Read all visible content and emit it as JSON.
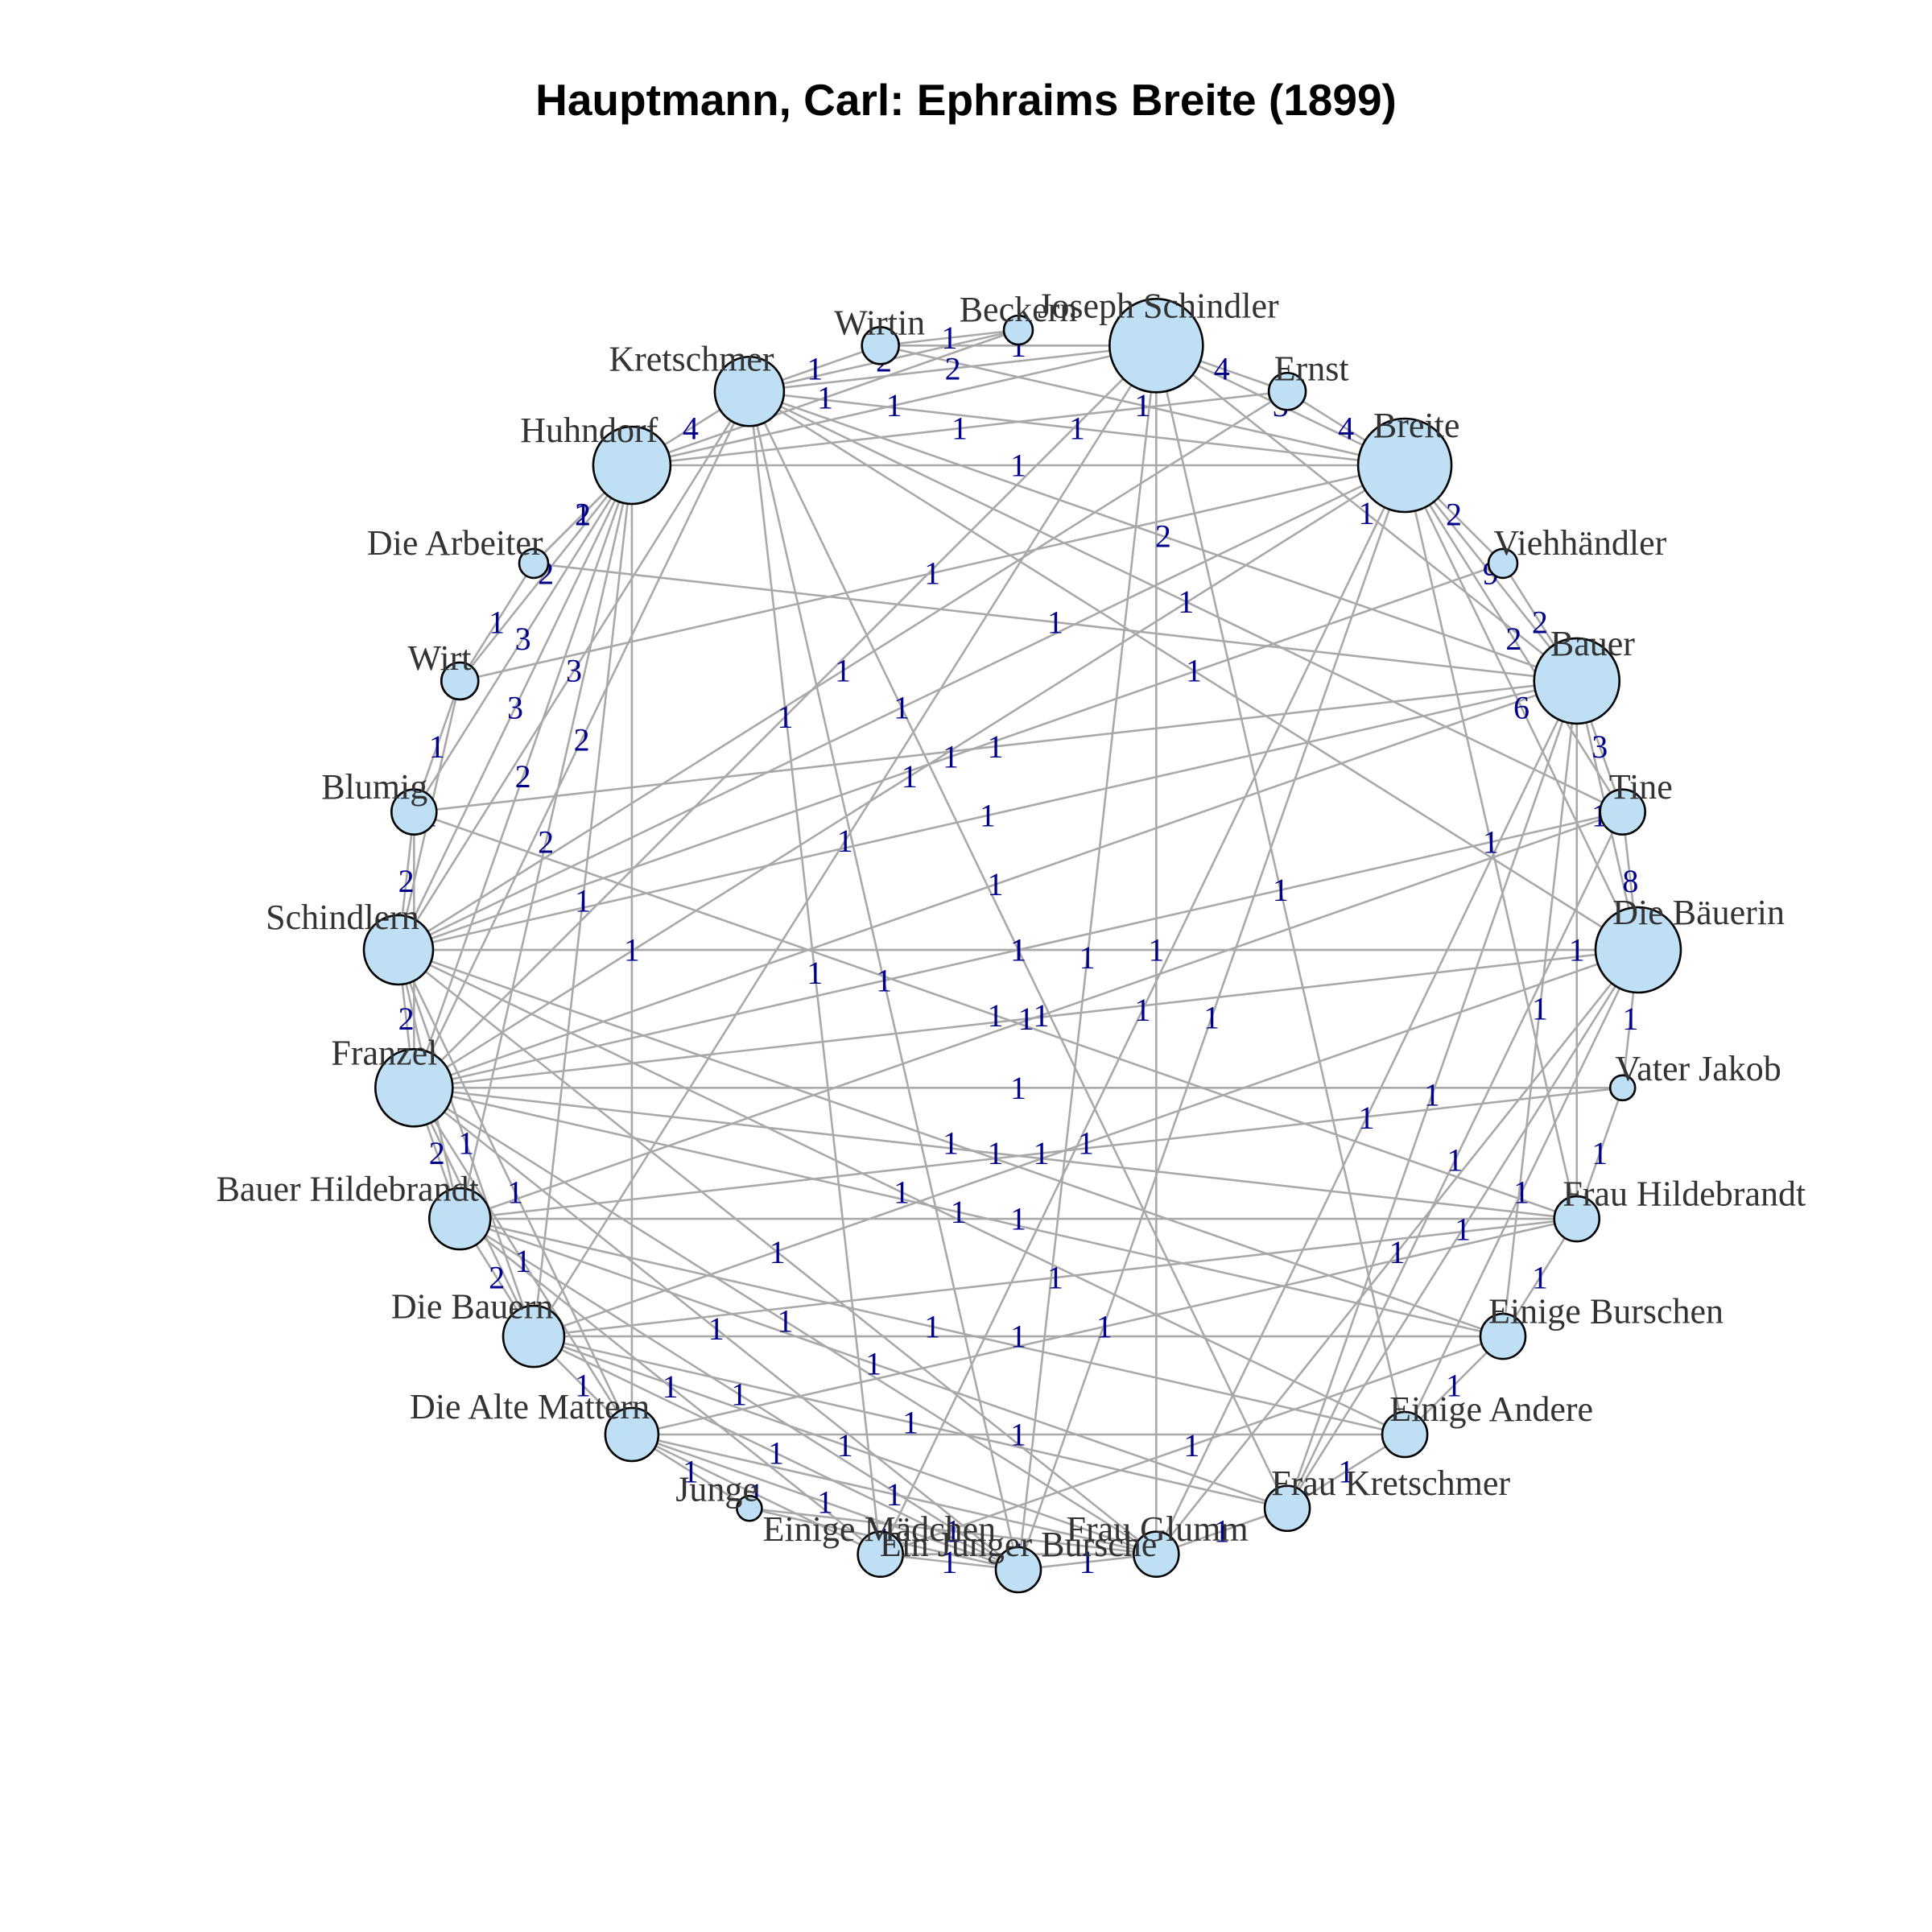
{
  "title": "Hauptmann, Carl: Ephraims Breite (1899)",
  "colors": {
    "node_fill": "#bfdff5",
    "node_stroke": "#000000",
    "edge": "#a9a9a9",
    "edge_label": "#00008b",
    "node_label": "#333333"
  },
  "chart_data": {
    "type": "network",
    "layout": "circle",
    "nodes": [
      {
        "name": "Joseph Schindler",
        "size": 10
      },
      {
        "name": "Ernst",
        "size": 3
      },
      {
        "name": "Breite",
        "size": 10
      },
      {
        "name": "Viehhändler",
        "size": 2
      },
      {
        "name": "Bauer",
        "size": 9
      },
      {
        "name": "Tine",
        "size": 4
      },
      {
        "name": "Die Bäuerin",
        "size": 9
      },
      {
        "name": "Vater Jakob",
        "size": 1.5
      },
      {
        "name": "Frau Hildebrandt",
        "size": 4
      },
      {
        "name": "Einige Burschen",
        "size": 4
      },
      {
        "name": "Einige Andere",
        "size": 4
      },
      {
        "name": "Frau Kretschmer",
        "size": 4
      },
      {
        "name": "Frau Glumm",
        "size": 4
      },
      {
        "name": "Ein Junger Bursche",
        "size": 4
      },
      {
        "name": "Einige Mädchen",
        "size": 4
      },
      {
        "name": "Junge",
        "size": 1.5
      },
      {
        "name": "Die Alte Mattern",
        "size": 5
      },
      {
        "name": "Die Bauern",
        "size": 6
      },
      {
        "name": "Bauer Hildebrandt",
        "size": 6
      },
      {
        "name": "Franzel",
        "size": 8
      },
      {
        "name": "Schindlern",
        "size": 7
      },
      {
        "name": "Blumig",
        "size": 4
      },
      {
        "name": "Wirt",
        "size": 3
      },
      {
        "name": "Die Arbeiter",
        "size": 2
      },
      {
        "name": "Huhndorf",
        "size": 8
      },
      {
        "name": "Kretschmer",
        "size": 7
      },
      {
        "name": "Wirtin",
        "size": 3
      },
      {
        "name": "Beckern",
        "size": 2
      }
    ],
    "edges": [
      {
        "source": "Joseph Schindler",
        "target": "Ernst",
        "weight": 4
      },
      {
        "source": "Ernst",
        "target": "Breite",
        "weight": 4
      },
      {
        "source": "Joseph Schindler",
        "target": "Breite",
        "weight": 3
      },
      {
        "source": "Breite",
        "target": "Viehhändler",
        "weight": 2
      },
      {
        "source": "Viehhändler",
        "target": "Bauer",
        "weight": 2
      },
      {
        "source": "Breite",
        "target": "Bauer",
        "weight": 9
      },
      {
        "source": "Bauer",
        "target": "Tine",
        "weight": 3
      },
      {
        "source": "Bauer",
        "target": "Die Bäuerin",
        "weight": 18
      },
      {
        "source": "Tine",
        "target": "Die Bäuerin",
        "weight": 8
      },
      {
        "source": "Breite",
        "target": "Tine",
        "weight": 2
      },
      {
        "source": "Breite",
        "target": "Die Bäuerin",
        "weight": 6
      },
      {
        "source": "Die Bäuerin",
        "target": "Vater Jakob",
        "weight": 1
      },
      {
        "source": "Vater Jakob",
        "target": "Frau Hildebrandt",
        "weight": 1
      },
      {
        "source": "Frau Hildebrandt",
        "target": "Einige Burschen",
        "weight": 1
      },
      {
        "source": "Einige Burschen",
        "target": "Einige Andere",
        "weight": 1
      },
      {
        "source": "Einige Andere",
        "target": "Frau Kretschmer",
        "weight": 1
      },
      {
        "source": "Frau Kretschmer",
        "target": "Frau Glumm",
        "weight": 1
      },
      {
        "source": "Frau Glumm",
        "target": "Ein Junger Bursche",
        "weight": 1
      },
      {
        "source": "Ein Junger Bursche",
        "target": "Einige Mädchen",
        "weight": 1
      },
      {
        "source": "Einige Mädchen",
        "target": "Die Alte Mattern",
        "weight": 1
      },
      {
        "source": "Junge",
        "target": "Die Alte Mattern",
        "weight": 1
      },
      {
        "source": "Die Alte Mattern",
        "target": "Die Bauern",
        "weight": 1
      },
      {
        "source": "Die Bauern",
        "target": "Bauer Hildebrandt",
        "weight": 2
      },
      {
        "source": "Bauer Hildebrandt",
        "target": "Franzel",
        "weight": 2
      },
      {
        "source": "Franzel",
        "target": "Schindlern",
        "weight": 2
      },
      {
        "source": "Schindlern",
        "target": "Blumig",
        "weight": 2
      },
      {
        "source": "Blumig",
        "target": "Wirt",
        "weight": 1
      },
      {
        "source": "Wirt",
        "target": "Die Arbeiter",
        "weight": 1
      },
      {
        "source": "Die Arbeiter",
        "target": "Huhndorf",
        "weight": 1
      },
      {
        "source": "Huhndorf",
        "target": "Kretschmer",
        "weight": 4
      },
      {
        "source": "Kretschmer",
        "target": "Wirtin",
        "weight": 1
      },
      {
        "source": "Wirtin",
        "target": "Beckern",
        "weight": 1
      },
      {
        "source": "Beckern",
        "target": "Kretschmer",
        "weight": 2
      },
      {
        "source": "Joseph Schindler",
        "target": "Kretschmer",
        "weight": 2
      },
      {
        "source": "Joseph Schindler",
        "target": "Huhndorf",
        "weight": 1
      },
      {
        "source": "Huhndorf",
        "target": "Breite",
        "weight": 1
      },
      {
        "source": "Breite",
        "target": "Kretschmer",
        "weight": 1
      },
      {
        "source": "Huhndorf",
        "target": "Die Arbeiter",
        "weight": 2
      },
      {
        "source": "Huhndorf",
        "target": "Wirt",
        "weight": 2
      },
      {
        "source": "Huhndorf",
        "target": "Blumig",
        "weight": 3
      },
      {
        "source": "Huhndorf",
        "target": "Schindlern",
        "weight": 3
      },
      {
        "source": "Huhndorf",
        "target": "Franzel",
        "weight": 2
      },
      {
        "source": "Huhndorf",
        "target": "Bauer Hildebrandt",
        "weight": 2
      },
      {
        "source": "Kretschmer",
        "target": "Schindlern",
        "weight": 3
      },
      {
        "source": "Kretschmer",
        "target": "Franzel",
        "weight": 2
      },
      {
        "source": "Kretschmer",
        "target": "Bauer",
        "weight": 2
      },
      {
        "source": "Kretschmer",
        "target": "Die Bäuerin",
        "weight": 1
      },
      {
        "source": "Kretschmer",
        "target": "Tine",
        "weight": 1
      },
      {
        "source": "Joseph Schindler",
        "target": "Die Bauern",
        "weight": 1
      },
      {
        "source": "Joseph Schindler",
        "target": "Bauer",
        "weight": 1
      },
      {
        "source": "Joseph Schindler",
        "target": "Franzel",
        "weight": 1
      },
      {
        "source": "Joseph Schindler",
        "target": "Frau Glumm",
        "weight": 1
      },
      {
        "source": "Breite",
        "target": "Schindlern",
        "weight": 1
      },
      {
        "source": "Breite",
        "target": "Franzel",
        "weight": 1
      },
      {
        "source": "Breite",
        "target": "Frau Hildebrandt",
        "weight": 1
      },
      {
        "source": "Bauer",
        "target": "Schindlern",
        "weight": 1
      },
      {
        "source": "Bauer",
        "target": "Franzel",
        "weight": 1
      },
      {
        "source": "Bauer",
        "target": "Frau Hildebrandt",
        "weight": 1
      },
      {
        "source": "Bauer",
        "target": "Einige Burschen",
        "weight": 1
      },
      {
        "source": "Die Bäuerin",
        "target": "Schindlern",
        "weight": 1
      },
      {
        "source": "Die Bäuerin",
        "target": "Franzel",
        "weight": 1
      },
      {
        "source": "Die Bäuerin",
        "target": "Die Bauern",
        "weight": 1
      },
      {
        "source": "Die Bäuerin",
        "target": "Einige Andere",
        "weight": 1
      },
      {
        "source": "Tine",
        "target": "Franzel",
        "weight": 1
      },
      {
        "source": "Tine",
        "target": "Bauer Hildebrandt",
        "weight": 1
      },
      {
        "source": "Frau Hildebrandt",
        "target": "Bauer Hildebrandt",
        "weight": 1
      },
      {
        "source": "Frau Hildebrandt",
        "target": "Franzel",
        "weight": 1
      },
      {
        "source": "Frau Hildebrandt",
        "target": "Die Bauern",
        "weight": 1
      },
      {
        "source": "Frau Hildebrandt",
        "target": "Die Alte Mattern",
        "weight": 1
      },
      {
        "source": "Einige Burschen",
        "target": "Einige Mädchen",
        "weight": 1
      },
      {
        "source": "Einige Burschen",
        "target": "Franzel",
        "weight": 1
      },
      {
        "source": "Einige Burschen",
        "target": "Die Bauern",
        "weight": 1
      },
      {
        "source": "Einige Andere",
        "target": "Die Alte Mattern",
        "weight": 1
      },
      {
        "source": "Einige Andere",
        "target": "Bauer Hildebrandt",
        "weight": 1
      },
      {
        "source": "Frau Kretschmer",
        "target": "Bauer Hildebrandt",
        "weight": 1
      },
      {
        "source": "Frau Kretschmer",
        "target": "Die Bauern",
        "weight": 1
      },
      {
        "source": "Frau Kretschmer",
        "target": "Kretschmer",
        "weight": 1
      },
      {
        "source": "Frau Glumm",
        "target": "Die Alte Mattern",
        "weight": 1
      },
      {
        "source": "Frau Glumm",
        "target": "Die Bauern",
        "weight": 1
      },
      {
        "source": "Frau Glumm",
        "target": "Schindlern",
        "weight": 1
      },
      {
        "source": "Ein Junger Bursche",
        "target": "Die Alte Mattern",
        "weight": 1
      },
      {
        "source": "Ein Junger Bursche",
        "target": "Franzel",
        "weight": 1
      },
      {
        "source": "Einige Mädchen",
        "target": "Bauer Hildebrandt",
        "weight": 1
      },
      {
        "source": "Einige Mädchen",
        "target": "Frau Glumm",
        "weight": 1
      },
      {
        "source": "Die Alte Mattern",
        "target": "Franzel",
        "weight": 1
      },
      {
        "source": "Die Alte Mattern",
        "target": "Schindlern",
        "weight": 1
      },
      {
        "source": "Die Bauern",
        "target": "Franzel",
        "weight": 1
      },
      {
        "source": "Die Bauern",
        "target": "Schindlern",
        "weight": 1
      },
      {
        "source": "Bauer Hildebrandt",
        "target": "Schindlern",
        "weight": 2
      },
      {
        "source": "Franzel",
        "target": "Blumig",
        "weight": 1
      },
      {
        "source": "Schindlern",
        "target": "Wirt",
        "weight": 1
      },
      {
        "source": "Schindlern",
        "target": "Die Bäuerin",
        "weight": 1
      },
      {
        "source": "Huhndorf",
        "target": "Die Bauern",
        "weight": 1
      },
      {
        "source": "Huhndorf",
        "target": "Die Alte Mattern",
        "weight": 1
      },
      {
        "source": "Kretschmer",
        "target": "Einige Mädchen",
        "weight": 1
      },
      {
        "source": "Kretschmer",
        "target": "Ein Junger Bursche",
        "weight": 1
      },
      {
        "source": "Wirtin",
        "target": "Breite",
        "weight": 1
      },
      {
        "source": "Wirtin",
        "target": "Joseph Schindler",
        "weight": 1
      },
      {
        "source": "Beckern",
        "target": "Huhndorf",
        "weight": 1
      },
      {
        "source": "Joseph Schindler",
        "target": "Einige Andere",
        "weight": 1
      },
      {
        "source": "Joseph Schindler",
        "target": "Ein Junger Bursche",
        "weight": 1
      },
      {
        "source": "Breite",
        "target": "Einige Mädchen",
        "weight": 1
      },
      {
        "source": "Breite",
        "target": "Ein Junger Bursche",
        "weight": 1
      },
      {
        "source": "Bauer",
        "target": "Frau Kretschmer",
        "weight": 1
      },
      {
        "source": "Bauer",
        "target": "Frau Glumm",
        "weight": 1
      },
      {
        "source": "Tine",
        "target": "Frau Kretschmer",
        "weight": 1
      },
      {
        "source": "Die Bäuerin",
        "target": "Frau Glumm",
        "weight": 1
      },
      {
        "source": "Die Bäuerin",
        "target": "Frau Kretschmer",
        "weight": 1
      },
      {
        "source": "Blumig",
        "target": "Frau Hildebrandt",
        "weight": 1
      },
      {
        "source": "Blumig",
        "target": "Bauer",
        "weight": 1
      },
      {
        "source": "Wirt",
        "target": "Breite",
        "weight": 1
      },
      {
        "source": "Die Arbeiter",
        "target": "Bauer",
        "weight": 1
      },
      {
        "source": "Ernst",
        "target": "Huhndorf",
        "weight": 1
      },
      {
        "source": "Ernst",
        "target": "Schindlern",
        "weight": 1
      },
      {
        "source": "Viehhändler",
        "target": "Schindlern",
        "weight": 1
      },
      {
        "source": "Vater Jakob",
        "target": "Bauer Hildebrandt",
        "weight": 1
      },
      {
        "source": "Vater Jakob",
        "target": "Franzel",
        "weight": 1
      },
      {
        "source": "Junge",
        "target": "Ein Junger Bursche",
        "weight": 1
      },
      {
        "source": "Junge",
        "target": "Frau Glumm",
        "weight": 1
      },
      {
        "source": "Die Bauern",
        "target": "Ein Junger Bursche",
        "weight": 1
      },
      {
        "source": "Bauer Hildebrandt",
        "target": "Ein Junger Bursche",
        "weight": 1
      },
      {
        "source": "Franzel",
        "target": "Frau Glumm",
        "weight": 1
      },
      {
        "source": "Schindlern",
        "target": "Einige Burschen",
        "weight": 1
      },
      {
        "source": "Schindlern",
        "target": "Einige Andere",
        "weight": 1
      }
    ]
  }
}
